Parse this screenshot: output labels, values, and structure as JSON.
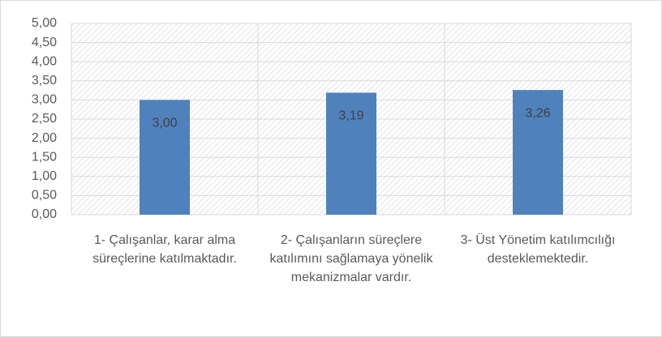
{
  "chart_data": {
    "type": "bar",
    "categories": [
      "1- Çalışanlar, karar alma süreçlerine katılmaktadır.",
      "2- Çalışanların süreçlere katılımını sağlamaya yönelik mekanizmalar vardır.",
      "3- Üst Yönetim katılımcılığı desteklemektedir."
    ],
    "values": [
      3.0,
      3.19,
      3.26
    ],
    "value_labels": [
      "3,00",
      "3,19",
      "3,26"
    ],
    "color": "#4f81bd",
    "ylim": [
      0,
      5
    ],
    "yticks": [
      {
        "value": 0,
        "label": "0,00"
      },
      {
        "value": 0.5,
        "label": "0,50"
      },
      {
        "value": 1,
        "label": "1,00"
      },
      {
        "value": 1.5,
        "label": "1,50"
      },
      {
        "value": 2,
        "label": "2,00"
      },
      {
        "value": 2.5,
        "label": "2,50"
      },
      {
        "value": 3,
        "label": "3,00"
      },
      {
        "value": 3.5,
        "label": "3,50"
      },
      {
        "value": 4,
        "label": "4,00"
      },
      {
        "value": 4.5,
        "label": "4,50"
      },
      {
        "value": 5,
        "label": "5,00"
      }
    ],
    "grid": true
  }
}
